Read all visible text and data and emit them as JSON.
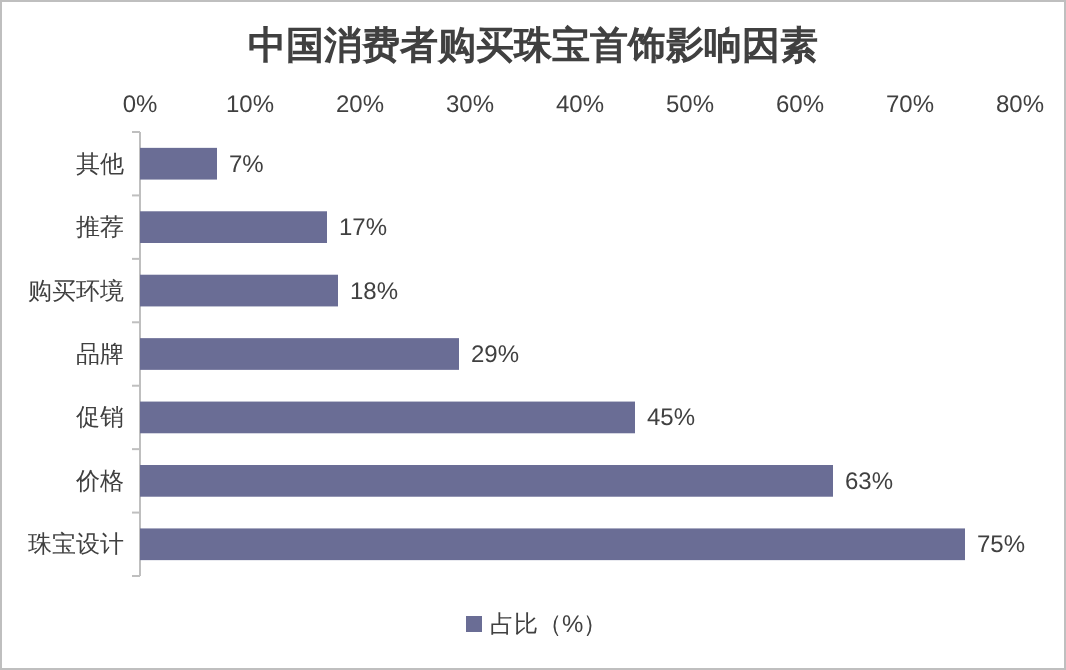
{
  "chart_data": {
    "type": "bar",
    "orientation": "horizontal",
    "title": "中国消费者购买珠宝首饰影响因素",
    "categories": [
      "其他",
      "推荐",
      "购买环境",
      "品牌",
      "促销",
      "价格",
      "珠宝设计"
    ],
    "series": [
      {
        "name": "占比（%）",
        "color": "#6a6d95",
        "values": [
          7,
          17,
          18,
          29,
          45,
          63,
          75
        ],
        "value_labels": [
          "7%",
          "17%",
          "18%",
          "29%",
          "45%",
          "63%",
          "75%"
        ]
      }
    ],
    "xlim": [
      0,
      80
    ],
    "xticks": [
      {
        "value": 0,
        "label": "0%"
      },
      {
        "value": 10,
        "label": "10%"
      },
      {
        "value": 20,
        "label": "20%"
      },
      {
        "value": 30,
        "label": "30%"
      },
      {
        "value": 40,
        "label": "40%"
      },
      {
        "value": 50,
        "label": "50%"
      },
      {
        "value": 60,
        "label": "60%"
      },
      {
        "value": 70,
        "label": "70%"
      },
      {
        "value": 80,
        "label": "80%"
      }
    ],
    "grid": false,
    "legend": "bottom"
  }
}
